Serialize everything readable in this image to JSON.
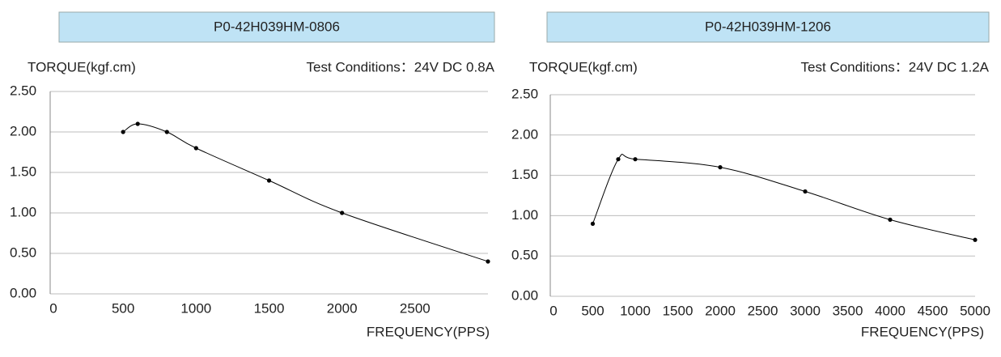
{
  "chart_data": [
    {
      "type": "line",
      "title": "P0-42H039HM-0806",
      "y_label": "TORQUE(kgf.cm)",
      "annotation": "Test Conditions：24V DC  0.8A",
      "x_label": "FREQUENCY(PPS)",
      "x": [
        500,
        600,
        800,
        1000,
        1500,
        2000,
        3000
      ],
      "values": [
        2.0,
        2.1,
        2.0,
        1.8,
        1.4,
        1.0,
        0.4
      ],
      "color": "#000000",
      "xlim": [
        0,
        3000
      ],
      "ylim": [
        0,
        2.5
      ],
      "xticks": [
        0,
        500,
        1000,
        1500,
        2000,
        2500
      ],
      "yticks": [
        {
          "value": 0,
          "label": "0.00"
        },
        {
          "value": 0.5,
          "label": "0.50"
        },
        {
          "value": 1,
          "label": "1.00"
        },
        {
          "value": 1.5,
          "label": "1.50"
        },
        {
          "value": 2,
          "label": "2.00"
        },
        {
          "value": 2.5,
          "label": "2.50"
        }
      ],
      "grid": true
    },
    {
      "type": "line",
      "title": "P0-42H039HM-1206",
      "y_label": "TORQUE(kgf.cm)",
      "annotation": "Test Conditions：24V DC  1.2A",
      "x_label": "FREQUENCY(PPS)",
      "x": [
        500,
        800,
        1000,
        2000,
        3000,
        4000,
        5000
      ],
      "values": [
        0.9,
        1.7,
        1.7,
        1.6,
        1.3,
        0.95,
        0.7
      ],
      "color": "#000000",
      "xlim": [
        0,
        5000
      ],
      "ylim": [
        0,
        2.5
      ],
      "xticks": [
        0,
        500,
        1000,
        1500,
        2000,
        2500,
        3000,
        3500,
        4000,
        4500,
        5000
      ],
      "yticks": [
        {
          "value": 0,
          "label": "0.00"
        },
        {
          "value": 0.5,
          "label": "0.50"
        },
        {
          "value": 1,
          "label": "1.00"
        },
        {
          "value": 1.5,
          "label": "1.50"
        },
        {
          "value": 2,
          "label": "2.00"
        },
        {
          "value": 2.5,
          "label": "2.50"
        }
      ],
      "grid": true
    }
  ]
}
